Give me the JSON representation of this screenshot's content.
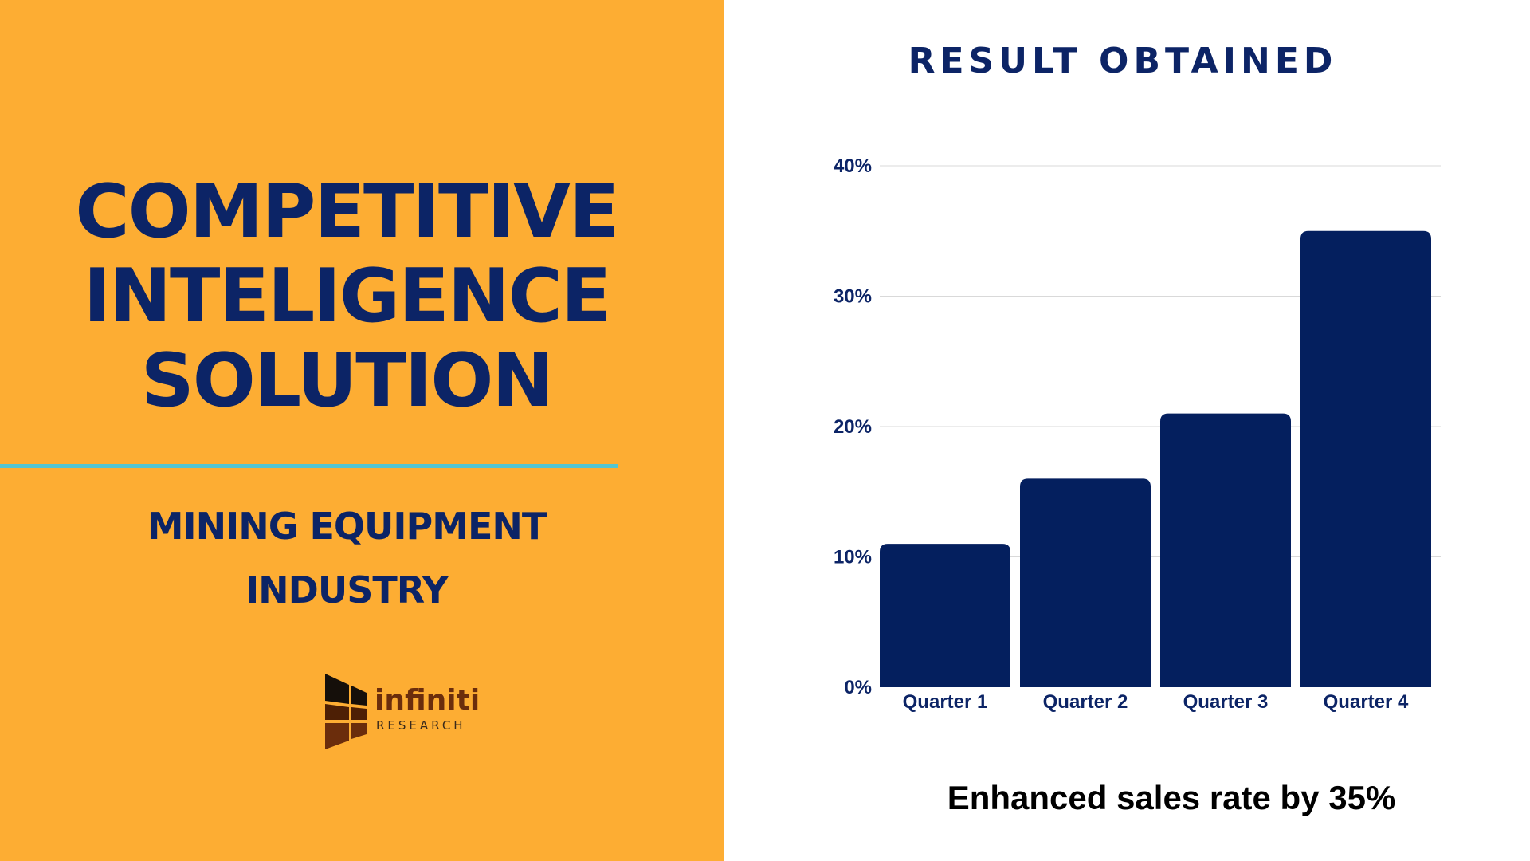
{
  "left_panel": {
    "title_lines": [
      "COMPETITIVE",
      "INTELIGENCE",
      "SOLUTION"
    ],
    "subtitle_lines": [
      "MINING EQUIPMENT",
      "INDUSTRY"
    ],
    "logo": {
      "name": "infiniti",
      "sub": "RESEARCH"
    }
  },
  "colors": {
    "panel_bg": "#fdad33",
    "navy": "#0c2466",
    "bar": "#041f5e",
    "divider": "#52c5d2",
    "gridline": "#d9d9d9"
  },
  "chart_data": {
    "type": "bar",
    "title": "RESULT OBTAINED",
    "categories": [
      "Quarter 1",
      "Quarter 2",
      "Quarter 3",
      "Quarter 4"
    ],
    "values": [
      11,
      16,
      21,
      35
    ],
    "yticks": [
      "0%",
      "10%",
      "20%",
      "30%",
      "40%"
    ],
    "ylim": [
      0,
      40
    ],
    "grid": true,
    "xlabel": "",
    "ylabel": ""
  },
  "caption": "Enhanced sales rate by 35%"
}
